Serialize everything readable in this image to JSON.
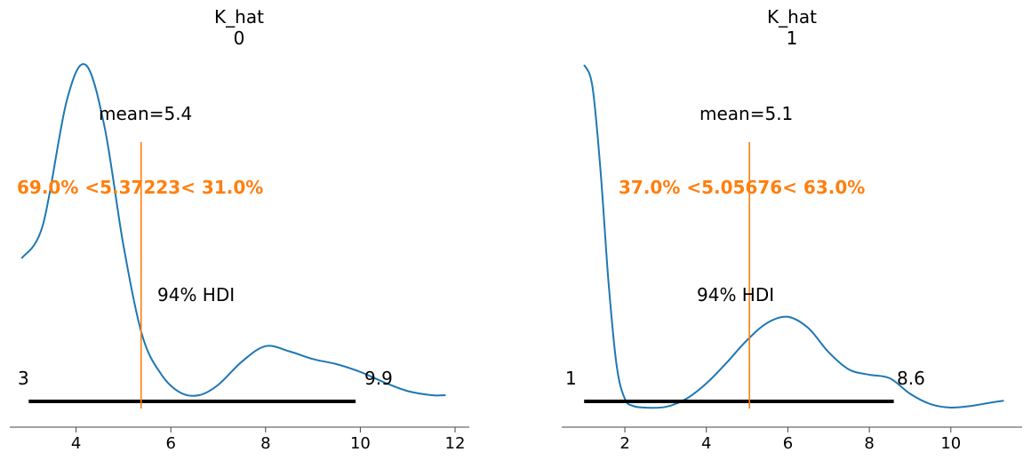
{
  "chart_data": [
    {
      "type": "density",
      "title": "K_hat",
      "subtitle": "0",
      "xlim": [
        2.6,
        12.3
      ],
      "xticks": [
        4,
        6,
        8,
        10,
        12
      ],
      "x": [
        2.85,
        3.3,
        3.8,
        4.2,
        4.6,
        5.0,
        5.4,
        5.8,
        6.2,
        6.6,
        7.0,
        7.5,
        8.0,
        8.5,
        9.0,
        9.5,
        10.0,
        10.5,
        11.0,
        11.5,
        11.8
      ],
      "density": [
        0.265,
        0.33,
        0.57,
        0.64,
        0.52,
        0.29,
        0.115,
        0.04,
        0.005,
        0.0,
        0.02,
        0.065,
        0.095,
        0.085,
        0.07,
        0.06,
        0.045,
        0.025,
        0.008,
        0.0,
        0.0
      ],
      "mean_label": "mean=5.4",
      "reference_value": 5.37223,
      "reference_label": "69.0% <5.37223< 31.0%",
      "hdi_label": "94% HDI",
      "hdi": [
        3,
        9.9
      ],
      "hdi_low_label": "3",
      "hdi_high_label": "9.9",
      "line_color": "#1f77b4",
      "reference_color": "#ff7f0e"
    },
    {
      "type": "density",
      "title": "K_hat",
      "subtitle": "1",
      "xlim": [
        0.45,
        11.75
      ],
      "xticks": [
        2,
        4,
        6,
        8,
        10
      ],
      "x": [
        1.0,
        1.2,
        1.4,
        1.6,
        1.8,
        2.0,
        2.2,
        2.5,
        3.0,
        3.5,
        4.0,
        4.5,
        5.0,
        5.5,
        6.0,
        6.5,
        7.0,
        7.5,
        8.0,
        8.5,
        9.0,
        9.5,
        10.0,
        10.5,
        11.0,
        11.3
      ],
      "density": [
        0.99,
        0.93,
        0.69,
        0.36,
        0.12,
        0.025,
        0.005,
        0.0,
        0.002,
        0.025,
        0.07,
        0.13,
        0.195,
        0.245,
        0.262,
        0.23,
        0.16,
        0.11,
        0.095,
        0.085,
        0.04,
        0.01,
        0.0,
        0.005,
        0.015,
        0.02
      ],
      "mean_label": "mean=5.1",
      "reference_value": 5.05676,
      "reference_label": "37.0% <5.05676< 63.0%",
      "hdi_label": "94% HDI",
      "hdi": [
        1,
        8.6
      ],
      "hdi_low_label": "1",
      "hdi_high_label": "8.6",
      "line_color": "#1f77b4",
      "reference_color": "#ff7f0e"
    }
  ]
}
